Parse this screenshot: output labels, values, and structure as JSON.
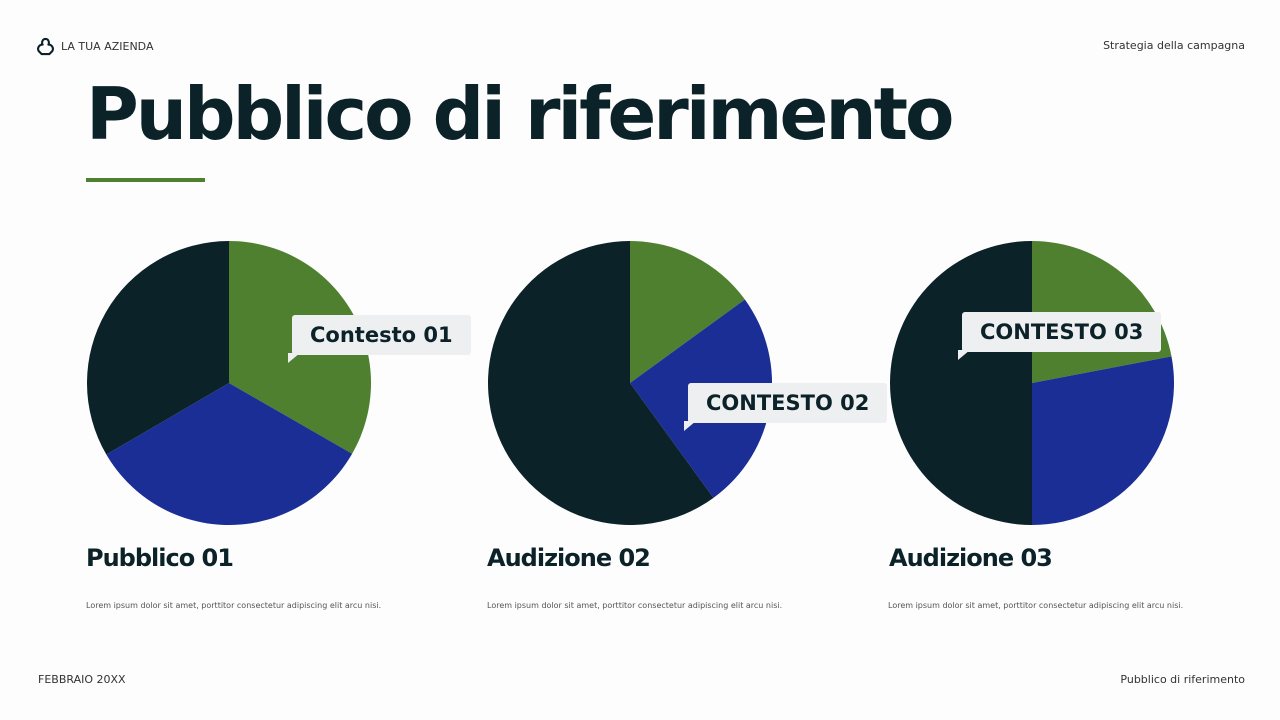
{
  "header": {
    "company": "LA TUA AZIENDA",
    "section": "Strategia della campagna",
    "logo_icon": "trefoil-logo-icon"
  },
  "title": "Pubblico di riferimento",
  "colors": {
    "green": "#4e8030",
    "blue": "#1a2e96",
    "dark": "#0b2228",
    "accent_rule": "#4e8030"
  },
  "chart_data": [
    {
      "type": "pie",
      "slices": [
        {
          "value": 33.3,
          "color": "#4e8030"
        },
        {
          "value": 33.3,
          "color": "#1a2e96"
        },
        {
          "value": 33.4,
          "color": "#0b2228"
        }
      ],
      "annotation": "Contesto 01",
      "title": "Pubblico 01",
      "description": "Lorem ipsum dolor sit amet, porttitor consectetur adipiscing elit arcu nisi."
    },
    {
      "type": "pie",
      "slices": [
        {
          "value": 15,
          "color": "#4e8030"
        },
        {
          "value": 25,
          "color": "#1a2e96"
        },
        {
          "value": 60,
          "color": "#0b2228"
        }
      ],
      "annotation": "CONTESTO 02",
      "title": "Audizione 02",
      "description": "Lorem ipsum dolor sit amet, porttitor consectetur adipiscing elit arcu nisi."
    },
    {
      "type": "pie",
      "slices": [
        {
          "value": 22,
          "color": "#4e8030"
        },
        {
          "value": 28,
          "color": "#1a2e96"
        },
        {
          "value": 50,
          "color": "#0b2228"
        }
      ],
      "annotation": "CONTESTO 03",
      "title": "Audizione 03",
      "description": "Lorem ipsum dolor sit amet, porttitor consectetur adipiscing elit arcu nisi."
    }
  ],
  "footer": {
    "date": "FEBBRAIO 20XX",
    "page_title": "Pubblico di riferimento"
  }
}
